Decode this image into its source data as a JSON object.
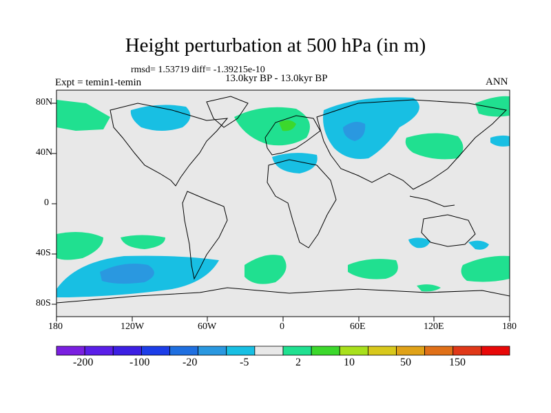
{
  "title": "Height perturbation at 500 hPa (in m)",
  "stats": "rmsd= 1.53719 diff= -1.39215e-10",
  "experiment": "Expt = temin1-temin",
  "period": "13.0kyr BP - 13.0kyr BP",
  "season": "ANN",
  "lat_labels": [
    "80N",
    "40N",
    "0",
    "40S",
    "80S"
  ],
  "lon_labels": [
    "180",
    "120W",
    "60W",
    "0",
    "60E",
    "120E",
    "180"
  ],
  "colorbar": {
    "colors": [
      "#7a1fe0",
      "#5a1ee8",
      "#3c1fe3",
      "#1c3de8",
      "#1f6fe0",
      "#2a98e0",
      "#18bfe3",
      "#e8e8e8",
      "#20e090",
      "#3cd82c",
      "#a8e01c",
      "#d8c81c",
      "#e0a218",
      "#e07018",
      "#e03818",
      "#e80808"
    ],
    "labels": [
      "-200",
      "-100",
      "-20",
      "-5",
      "2",
      "10",
      "50",
      "150"
    ]
  },
  "legend_colors": {
    "neutral": "#e8e8e8",
    "light_blue": "#18bfe3",
    "mid_blue": "#2a98e0",
    "light_green": "#20e090",
    "green": "#3cd82c"
  }
}
